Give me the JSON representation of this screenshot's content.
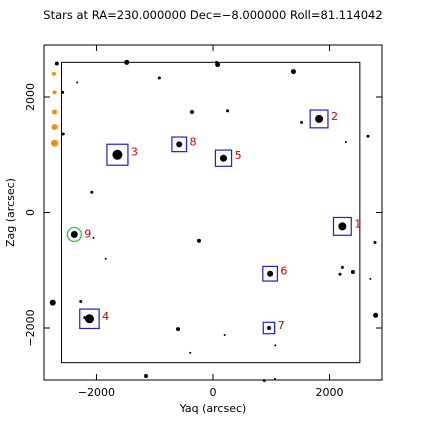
{
  "chart_data": {
    "type": "scatter",
    "title": "Stars at RA=230.000000 Dec=−8.000000 Roll=81.114042",
    "xlabel": "Yaq (arcsec)",
    "ylabel": "Zag (arcsec)",
    "xlim": [
      -2900,
      2900
    ],
    "ylim": [
      -2900,
      2900
    ],
    "xticks": [
      -2000,
      0,
      2000
    ],
    "yticks": [
      -2000,
      0,
      2000
    ],
    "xtick_labels": [
      "−2000",
      "0",
      "2000"
    ],
    "ytick_labels": [
      "−2000",
      "0",
      "2000"
    ],
    "field_box": {
      "yag": [
        -2600,
        2520
      ],
      "zag": [
        -2600,
        2600
      ]
    },
    "colors": {
      "stars": "#000000",
      "guide_box": "#1f1fc8",
      "guide_label": "#cc0000",
      "acq_circle": "#22cc22",
      "edge_star": "#ff8c00"
    },
    "guide_stars": [
      {
        "id": "1",
        "yag": 2220,
        "zag": -240,
        "size": 4
      },
      {
        "id": "2",
        "yag": 1820,
        "zag": 1620,
        "size": 4
      },
      {
        "id": "3",
        "yag": -1640,
        "zag": 1000,
        "size": 5
      },
      {
        "id": "4",
        "yag": -2120,
        "zag": -1840,
        "size": 4.5
      },
      {
        "id": "5",
        "yag": 180,
        "zag": 940,
        "size": 3.5
      },
      {
        "id": "6",
        "yag": 980,
        "zag": -1060,
        "size": 3
      },
      {
        "id": "7",
        "yag": 960,
        "zag": -2000,
        "size": 2
      },
      {
        "id": "8",
        "yag": -580,
        "zag": 1180,
        "size": 3
      }
    ],
    "acq_stars": [
      {
        "id": "9",
        "yag": -2380,
        "zag": -380,
        "size": 3.5
      }
    ],
    "edge_stars": [
      {
        "yag": -2730,
        "zag": 2400,
        "size": 2
      },
      {
        "yag": -2720,
        "zag": 2080,
        "size": 2
      },
      {
        "yag": -2720,
        "zag": 1740,
        "size": 2.5
      },
      {
        "yag": -2720,
        "zag": 1480,
        "size": 3
      },
      {
        "yag": -2720,
        "zag": 1200,
        "size": 3.5
      }
    ],
    "field_stars": [
      {
        "yag": -1480,
        "zag": 2600,
        "size": 2.5
      },
      {
        "yag": 60,
        "zag": 2600,
        "size": 1.5
      },
      {
        "yag": 80,
        "zag": 2560,
        "size": 2.5
      },
      {
        "yag": -920,
        "zag": 2330,
        "size": 1.5
      },
      {
        "yag": -2330,
        "zag": 2250,
        "size": 1
      },
      {
        "yag": -2680,
        "zag": 2580,
        "size": 2
      },
      {
        "yag": -2580,
        "zag": 2080,
        "size": 1.5
      },
      {
        "yag": 1380,
        "zag": 2440,
        "size": 2.5
      },
      {
        "yag": -360,
        "zag": 1740,
        "size": 2
      },
      {
        "yag": 250,
        "zag": 1760,
        "size": 1.5
      },
      {
        "yag": 1520,
        "zag": 1560,
        "size": 1.5
      },
      {
        "yag": 2280,
        "zag": 1220,
        "size": 1
      },
      {
        "yag": 2660,
        "zag": 1320,
        "size": 1.5
      },
      {
        "yag": -2570,
        "zag": 1360,
        "size": 1.5
      },
      {
        "yag": -2080,
        "zag": 350,
        "size": 1.5
      },
      {
        "yag": -2050,
        "zag": -440,
        "size": 1
      },
      {
        "yag": -1840,
        "zag": -800,
        "size": 1
      },
      {
        "yag": -240,
        "zag": -490,
        "size": 2
      },
      {
        "yag": 2780,
        "zag": -520,
        "size": 1.5
      },
      {
        "yag": 2220,
        "zag": -950,
        "size": 1.5
      },
      {
        "yag": 2180,
        "zag": -1070,
        "size": 1.5
      },
      {
        "yag": 2400,
        "zag": -1030,
        "size": 2
      },
      {
        "yag": 2700,
        "zag": -1150,
        "size": 1
      },
      {
        "yag": -2750,
        "zag": -1560,
        "size": 3
      },
      {
        "yag": -2270,
        "zag": -1540,
        "size": 1.5
      },
      {
        "yag": -2200,
        "zag": -1820,
        "size": 1.5
      },
      {
        "yag": 2790,
        "zag": -1780,
        "size": 2.5
      },
      {
        "yag": -600,
        "zag": -2020,
        "size": 2
      },
      {
        "yag": 200,
        "zag": -2120,
        "size": 1
      },
      {
        "yag": -390,
        "zag": -2430,
        "size": 1
      },
      {
        "yag": 1070,
        "zag": -2300,
        "size": 1
      },
      {
        "yag": -1150,
        "zag": -2830,
        "size": 2
      },
      {
        "yag": 880,
        "zag": -2910,
        "size": 1.5
      },
      {
        "yag": 1060,
        "zag": -2880,
        "size": 1
      }
    ]
  }
}
